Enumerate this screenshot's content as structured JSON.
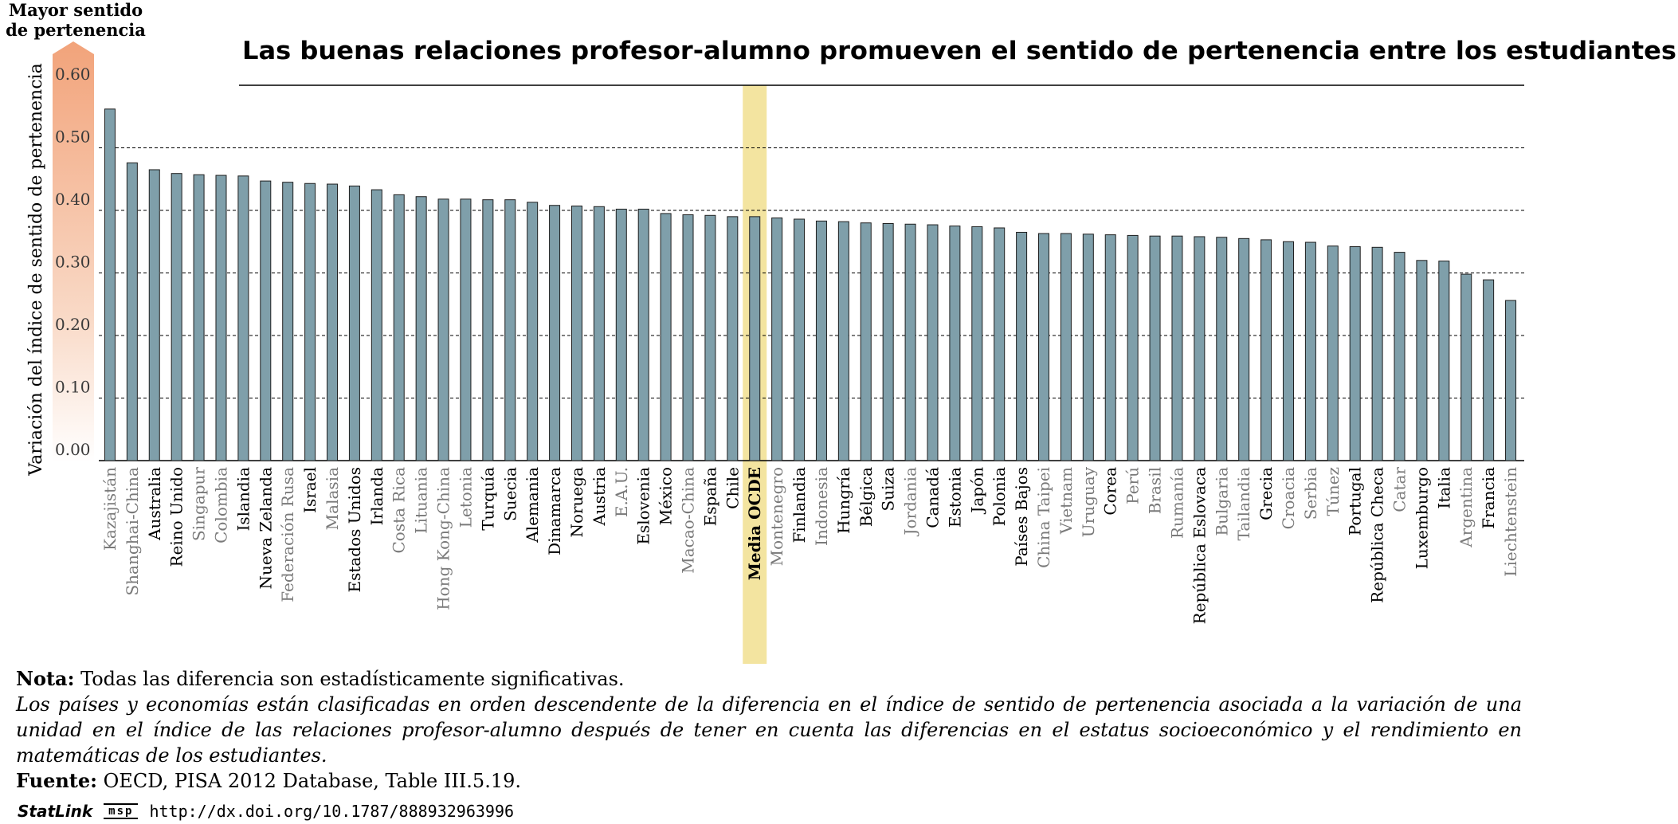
{
  "chart_data": {
    "type": "bar",
    "title": "Las buenas relaciones profesor-alumno promueven el sentido de pertenencia entre los estudiantes",
    "ylabel": "Variación del índice de sentido de pertenencia",
    "arrow_label": "Mayor sentido de pertenencia",
    "ylim": [
      0,
      0.6
    ],
    "yticks": [
      "0.00",
      "0.10",
      "0.20",
      "0.30",
      "0.40",
      "0.50",
      "0.60"
    ],
    "grid": true,
    "bar_color": "#7f9faa",
    "highlight_color": "#f3e4a0",
    "highlight_category": "Media OCDE",
    "categories": [
      "Kazajistán",
      "Shanghai-China",
      "Australia",
      "Reino Unido",
      "Singapur",
      "Colombia",
      "Islandia",
      "Nueva Zelanda",
      "Federación Rusa",
      "Israel",
      "Malasia",
      "Estados Unidos",
      "Irlanda",
      "Costa Rica",
      "Lituania",
      "Hong Kong-China",
      "Letonia",
      "Turquía",
      "Suecia",
      "Alemania",
      "Dinamarca",
      "Noruega",
      "Austria",
      "E.A.U.",
      "Eslovenia",
      "México",
      "Macao-China",
      "España",
      "Chile",
      "Media OCDE",
      "Montenegro",
      "Finlandia",
      "Indonesia",
      "Hungría",
      "Bélgica",
      "Suiza",
      "Jordania",
      "Canadá",
      "Estonia",
      "Japón",
      "Polonia",
      "Países Bajos",
      "China Taipei",
      "Vietnam",
      "Uruguay",
      "Corea",
      "Perú",
      "Brasil",
      "Rumanía",
      "República Eslovaca",
      "Bulgaria",
      "Tailandia",
      "Grecia",
      "Croacia",
      "Serbia",
      "Túnez",
      "Portugal",
      "República Checa",
      "Catar",
      "Luxemburgo",
      "Italia",
      "Argentina",
      "Francia",
      "Liechtenstein"
    ],
    "values": [
      0.562,
      0.476,
      0.465,
      0.459,
      0.457,
      0.456,
      0.455,
      0.447,
      0.445,
      0.443,
      0.442,
      0.439,
      0.433,
      0.425,
      0.422,
      0.418,
      0.418,
      0.417,
      0.417,
      0.413,
      0.408,
      0.407,
      0.406,
      0.402,
      0.402,
      0.395,
      0.393,
      0.392,
      0.39,
      0.39,
      0.388,
      0.386,
      0.383,
      0.382,
      0.38,
      0.379,
      0.378,
      0.377,
      0.375,
      0.374,
      0.372,
      0.365,
      0.363,
      0.363,
      0.362,
      0.361,
      0.36,
      0.359,
      0.359,
      0.358,
      0.357,
      0.355,
      0.353,
      0.35,
      0.349,
      0.343,
      0.342,
      0.341,
      0.333,
      0.32,
      0.319,
      0.298,
      0.289,
      0.256
    ],
    "label_gray": [
      true,
      true,
      false,
      false,
      true,
      true,
      false,
      false,
      true,
      false,
      true,
      false,
      false,
      true,
      true,
      true,
      true,
      false,
      false,
      false,
      false,
      false,
      false,
      true,
      false,
      false,
      true,
      false,
      false,
      false,
      true,
      false,
      true,
      false,
      false,
      false,
      true,
      false,
      false,
      false,
      false,
      false,
      true,
      true,
      true,
      false,
      true,
      true,
      true,
      false,
      true,
      true,
      false,
      true,
      true,
      true,
      false,
      false,
      true,
      false,
      false,
      true,
      false,
      true
    ]
  },
  "notes": {
    "nota_label": "Nota:",
    "nota_text": " Todas las diferencia son estadísticamente significativas.",
    "italic_text": "Los países y economías están clasificadas en orden descendente de la diferencia en el índice de sentido de pertenencia asociada a la variación de una unidad en el índice de las relaciones profesor-alumno después de tener en cuenta las diferencias en el estatus socioeconómico y el rendimiento en matemáticas de los estudiantes.",
    "fuente_label": "Fuente:",
    "fuente_text": " OECD, PISA 2012 Database, Table III.5.19."
  },
  "statlink": {
    "brand": "StatLink",
    "logo": "msp",
    "url": "http://dx.doi.org/10.1787/888932963996"
  }
}
